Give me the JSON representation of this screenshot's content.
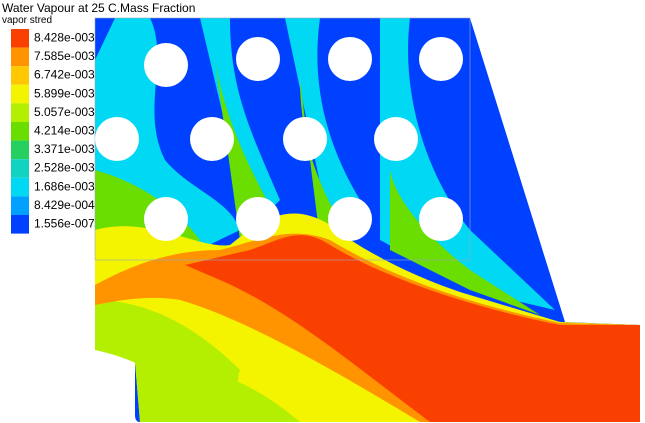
{
  "legend": {
    "title": "Water Vapour at 25 C.Mass Fraction",
    "variable": "vapor stred",
    "levels": [
      {
        "label": "8.428e-003",
        "color": "#fa4000"
      },
      {
        "label": "7.585e-003",
        "color": "#ff9400"
      },
      {
        "label": "6.742e-003",
        "color": "#ffc800"
      },
      {
        "label": "5.899e-003",
        "color": "#f4f400"
      },
      {
        "label": "5.057e-003",
        "color": "#b4ee00"
      },
      {
        "label": "4.214e-003",
        "color": "#6ade00"
      },
      {
        "label": "3.371e-003",
        "color": "#26d060"
      },
      {
        "label": "2.528e-003",
        "color": "#12d2c0"
      },
      {
        "label": "1.686e-003",
        "color": "#00d8f4"
      },
      {
        "label": "8.429e-004",
        "color": "#00a0ff"
      },
      {
        "label": "1.556e-007",
        "color": "#0040ff"
      }
    ]
  }
}
